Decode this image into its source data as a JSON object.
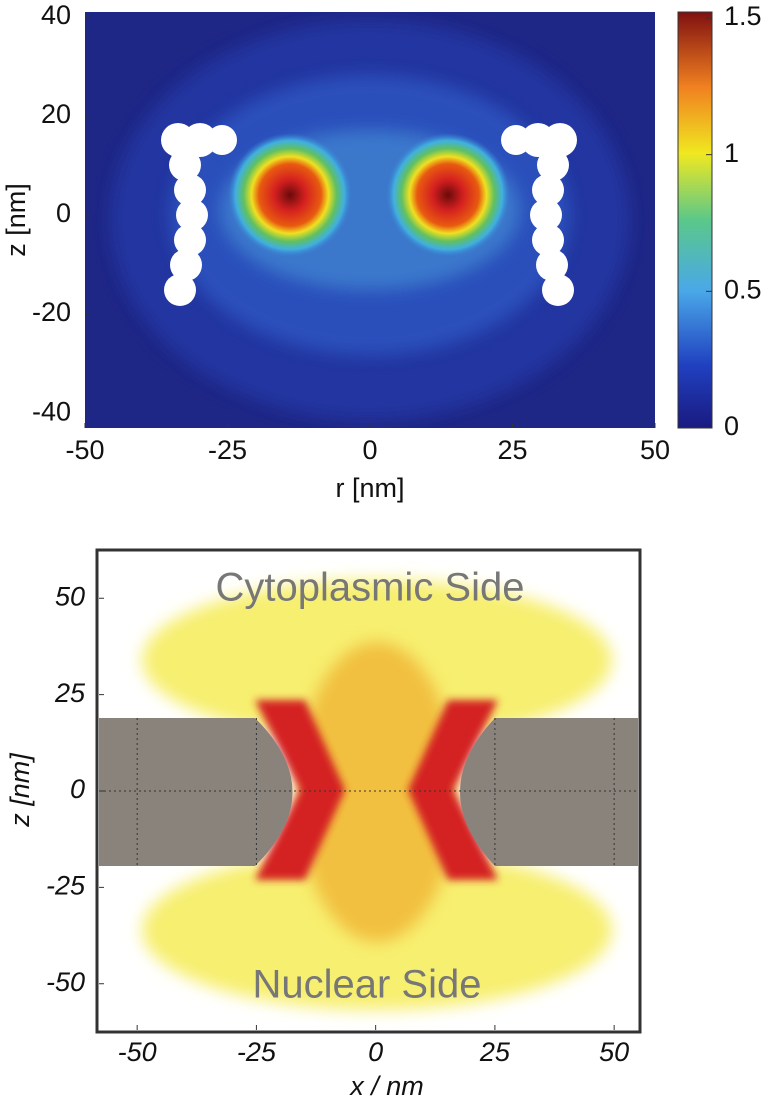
{
  "chart_data": [
    {
      "type": "heatmap",
      "xlabel": "r [nm]",
      "ylabel": "z [nm]",
      "xlim": [
        -50,
        50
      ],
      "ylim": [
        -43,
        41
      ],
      "xticks": [
        -50,
        -25,
        0,
        25,
        50
      ],
      "yticks": [
        -40,
        -20,
        0,
        20,
        40
      ],
      "colorbar": {
        "clim": [
          0,
          1.5
        ],
        "ticks": [
          0,
          0.5,
          1,
          1.5
        ]
      }
    },
    {
      "type": "heatmap",
      "xlabel": "x / nm",
      "ylabel": "z [nm]",
      "annotations": [
        "Cytoplasmic Side",
        "Nuclear Side"
      ],
      "xlim": [
        -58,
        55
      ],
      "ylim": [
        -62,
        62
      ],
      "xticks": [
        -50,
        -25,
        0,
        25,
        50
      ],
      "yticks": [
        -50,
        -25,
        0,
        25,
        50
      ],
      "grid": true
    }
  ]
}
